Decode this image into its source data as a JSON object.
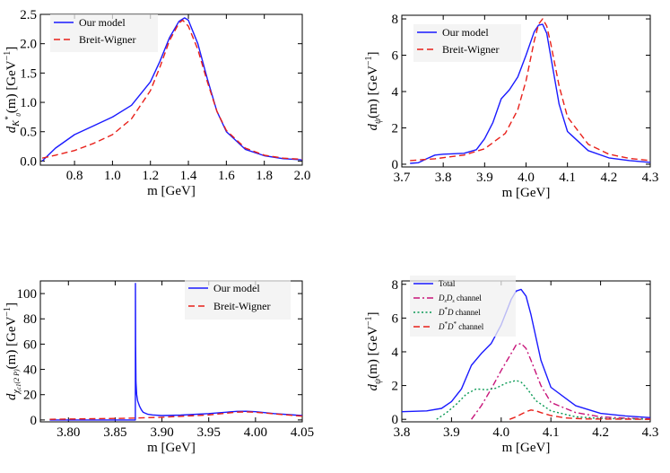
{
  "colors": {
    "blue": "#1a1aff",
    "red": "#e8201a",
    "magenta": "#c8157a",
    "green": "#0a9a55"
  },
  "chart_data": [
    {
      "type": "line",
      "xlabel": "m [GeV]",
      "ylabel": "d_{K0*}(m) [GeV^-1]",
      "ylabel_parts": {
        "pre": "d",
        "sub": "K",
        "subsub": "0",
        "sup": "*",
        "post": "(m) [GeV",
        "exp": "−1",
        "close": "]"
      },
      "xlim": [
        0.62,
        2.0
      ],
      "ylim": [
        -0.07,
        2.5
      ],
      "xticks": [
        0.8,
        1.0,
        1.2,
        1.4,
        1.6,
        1.8,
        2.0
      ],
      "xtick_labels": [
        "0.8",
        "1.0",
        "1.2",
        "1.4",
        "1.6",
        "1.8",
        "2.0"
      ],
      "yticks": [
        0.0,
        0.5,
        1.0,
        1.5,
        2.0,
        2.5
      ],
      "ytick_labels": [
        "0.0",
        "0.5",
        "1.0",
        "1.5",
        "2.0",
        "2.5"
      ],
      "legend_position": "top-left",
      "series": [
        {
          "name": "Our model",
          "color": "blue",
          "dash": "solid",
          "x": [
            0.63,
            0.7,
            0.8,
            0.9,
            1.0,
            1.1,
            1.2,
            1.25,
            1.3,
            1.35,
            1.38,
            1.4,
            1.45,
            1.5,
            1.55,
            1.6,
            1.7,
            1.8,
            1.9,
            2.0
          ],
          "y": [
            0.0,
            0.22,
            0.45,
            0.6,
            0.75,
            0.95,
            1.35,
            1.7,
            2.1,
            2.38,
            2.44,
            2.4,
            2.0,
            1.4,
            0.85,
            0.5,
            0.2,
            0.09,
            0.04,
            0.02
          ]
        },
        {
          "name": "Breit-Wigner",
          "color": "red",
          "dash": "dashed",
          "x": [
            0.63,
            0.7,
            0.8,
            0.9,
            1.0,
            1.1,
            1.2,
            1.25,
            1.3,
            1.35,
            1.37,
            1.4,
            1.45,
            1.5,
            1.55,
            1.6,
            1.7,
            1.8,
            1.9,
            2.0
          ],
          "y": [
            0.05,
            0.1,
            0.18,
            0.3,
            0.45,
            0.72,
            1.2,
            1.6,
            2.05,
            2.35,
            2.4,
            2.3,
            1.9,
            1.35,
            0.85,
            0.52,
            0.22,
            0.1,
            0.05,
            0.03
          ]
        }
      ]
    },
    {
      "type": "line",
      "xlabel": "m [GeV]",
      "ylabel": "d_ψ(m) [GeV^-1]",
      "ylabel_parts": {
        "pre": "d",
        "sub": "ψ",
        "post": "(m) [GeV",
        "exp": "−1",
        "close": "]"
      },
      "xlim": [
        3.7,
        4.3
      ],
      "ylim": [
        -0.15,
        8.2
      ],
      "xticks": [
        3.7,
        3.8,
        3.9,
        4.0,
        4.1,
        4.2,
        4.3
      ],
      "xtick_labels": [
        "3.7",
        "3.8",
        "3.9",
        "4.0",
        "4.1",
        "4.2",
        "4.3"
      ],
      "yticks": [
        0,
        2,
        4,
        6,
        8
      ],
      "ytick_labels": [
        "0",
        "2",
        "4",
        "6",
        "8"
      ],
      "legend_position": "top-left",
      "series": [
        {
          "name": "Our model",
          "color": "blue",
          "dash": "solid",
          "x": [
            3.72,
            3.74,
            3.76,
            3.78,
            3.8,
            3.85,
            3.88,
            3.9,
            3.92,
            3.94,
            3.96,
            3.98,
            4.0,
            4.02,
            4.03,
            4.04,
            4.05,
            4.06,
            4.08,
            4.1,
            4.15,
            4.2,
            4.25,
            4.3
          ],
          "y": [
            0.05,
            0.08,
            0.3,
            0.5,
            0.55,
            0.6,
            0.8,
            1.4,
            2.3,
            3.6,
            4.1,
            4.8,
            6.0,
            7.3,
            7.65,
            7.7,
            7.2,
            5.9,
            3.3,
            1.8,
            0.75,
            0.35,
            0.2,
            0.1
          ]
        },
        {
          "name": "Breit-Wigner",
          "color": "red",
          "dash": "dashed",
          "x": [
            3.72,
            3.78,
            3.85,
            3.9,
            3.95,
            3.98,
            4.0,
            4.02,
            4.03,
            4.04,
            4.05,
            4.06,
            4.08,
            4.1,
            4.15,
            4.2,
            4.25,
            4.3
          ],
          "y": [
            0.2,
            0.3,
            0.5,
            0.85,
            1.7,
            3.0,
            4.6,
            6.8,
            7.7,
            8.0,
            7.6,
            6.6,
            4.3,
            2.6,
            1.1,
            0.55,
            0.32,
            0.2
          ]
        }
      ]
    },
    {
      "type": "line",
      "xlabel": "m [GeV]",
      "ylabel": "d_{χc1(2P)}(m) [GeV^-1]",
      "ylabel_parts": {
        "pre": "d",
        "sub": "χ",
        "subsub": "c1",
        "subtail": "(2 P)",
        "post": "(m) [GeV",
        "exp": "−1",
        "close": "]"
      },
      "xlim": [
        3.77,
        4.05
      ],
      "ylim": [
        -1.5,
        110
      ],
      "xticks": [
        3.8,
        3.85,
        3.9,
        3.95,
        4.0,
        4.05
      ],
      "xtick_labels": [
        "3.80",
        "3.85",
        "3.90",
        "3.95",
        "4.00",
        "4.05"
      ],
      "yticks": [
        0,
        20,
        40,
        60,
        80,
        100
      ],
      "ytick_labels": [
        "0",
        "20",
        "40",
        "60",
        "80",
        "100"
      ],
      "legend_position": "top-right",
      "series": [
        {
          "name": "Our model",
          "color": "blue",
          "dash": "solid",
          "x": [
            3.78,
            3.8,
            3.86,
            3.8715,
            3.8716,
            3.8718,
            3.8722,
            3.873,
            3.874,
            3.876,
            3.878,
            3.88,
            3.885,
            3.89,
            3.9,
            3.92,
            3.95,
            3.98,
            3.99,
            4.0,
            4.02,
            4.05
          ],
          "y": [
            0.0,
            0.0,
            0.0,
            0.0,
            108,
            60,
            30,
            20,
            15,
            11,
            8,
            6,
            4.5,
            4,
            3.5,
            3.8,
            5,
            6.8,
            6.9,
            6.5,
            5,
            3.5
          ]
        },
        {
          "name": "Breit-Wigner",
          "color": "red",
          "dash": "dashed",
          "x": [
            3.78,
            3.82,
            3.86,
            3.9,
            3.95,
            3.98,
            3.99,
            4.0,
            4.02,
            4.05
          ],
          "y": [
            0.5,
            0.9,
            1.3,
            2.1,
            4.0,
            6.2,
            6.4,
            6.1,
            4.8,
            3.0
          ]
        }
      ]
    },
    {
      "type": "line",
      "xlabel": "m [GeV]",
      "ylabel": "d_ψ(m) [GeV^-1]",
      "ylabel_parts": {
        "pre": "d",
        "sub": "ψ",
        "post": "(m) [GeV",
        "exp": "−1",
        "close": "]"
      },
      "xlim": [
        3.8,
        4.3
      ],
      "ylim": [
        -0.15,
        8.2
      ],
      "xticks": [
        3.8,
        3.9,
        4.0,
        4.1,
        4.2,
        4.3
      ],
      "xtick_labels": [
        "3.8",
        "3.9",
        "4.0",
        "4.1",
        "4.2",
        "4.3"
      ],
      "yticks": [
        0,
        2,
        4,
        6,
        8
      ],
      "ytick_labels": [
        "0",
        "2",
        "4",
        "6",
        "8"
      ],
      "legend_position": "top-left",
      "series": [
        {
          "name": "Total",
          "color": "blue",
          "dash": "solid",
          "x": [
            3.8,
            3.85,
            3.88,
            3.9,
            3.92,
            3.94,
            3.96,
            3.98,
            4.0,
            4.02,
            4.03,
            4.04,
            4.05,
            4.06,
            4.08,
            4.1,
            4.15,
            4.2,
            4.25,
            4.3
          ],
          "y": [
            0.45,
            0.5,
            0.65,
            1.05,
            1.8,
            3.2,
            3.9,
            4.5,
            5.6,
            7.1,
            7.6,
            7.7,
            7.3,
            6.2,
            3.5,
            1.9,
            0.8,
            0.35,
            0.2,
            0.1
          ]
        },
        {
          "name": "D_sD_s channel",
          "name_parts": {
            "a": "D",
            "as": "s",
            "b": "D",
            "bs": "s",
            "tail": " channel"
          },
          "color": "magenta",
          "dash": "dashdot",
          "x": [
            3.94,
            3.96,
            3.98,
            4.0,
            4.02,
            4.03,
            4.04,
            4.05,
            4.06,
            4.08,
            4.1,
            4.15,
            4.2,
            4.25,
            4.3
          ],
          "y": [
            0.0,
            0.8,
            1.8,
            2.9,
            3.9,
            4.4,
            4.5,
            4.2,
            3.5,
            2.0,
            1.0,
            0.4,
            0.15,
            0.07,
            0.03
          ]
        },
        {
          "name": "D*D channel",
          "name_parts": {
            "a": "D",
            "asup": "*",
            "b": "D",
            "tail": " channel"
          },
          "color": "green",
          "dash": "dotted",
          "x": [
            3.87,
            3.89,
            3.91,
            3.93,
            3.95,
            3.97,
            3.99,
            4.01,
            4.03,
            4.04,
            4.05,
            4.07,
            4.1,
            4.15,
            4.2,
            4.3
          ],
          "y": [
            0.0,
            0.4,
            0.9,
            1.5,
            1.8,
            1.75,
            1.85,
            2.15,
            2.3,
            2.2,
            1.9,
            1.1,
            0.5,
            0.15,
            0.05,
            0.01
          ]
        },
        {
          "name": "D*D* channel",
          "name_parts": {
            "a": "D",
            "asup": "*",
            "b": "D",
            "bsup": "*",
            "tail": " channel"
          },
          "color": "red",
          "dash": "dashed",
          "x": [
            4.017,
            4.03,
            4.05,
            4.06,
            4.07,
            4.08,
            4.1,
            4.13,
            4.17,
            4.3
          ],
          "y": [
            0.0,
            0.15,
            0.45,
            0.55,
            0.5,
            0.4,
            0.22,
            0.08,
            0.02,
            0.0
          ]
        }
      ]
    }
  ]
}
